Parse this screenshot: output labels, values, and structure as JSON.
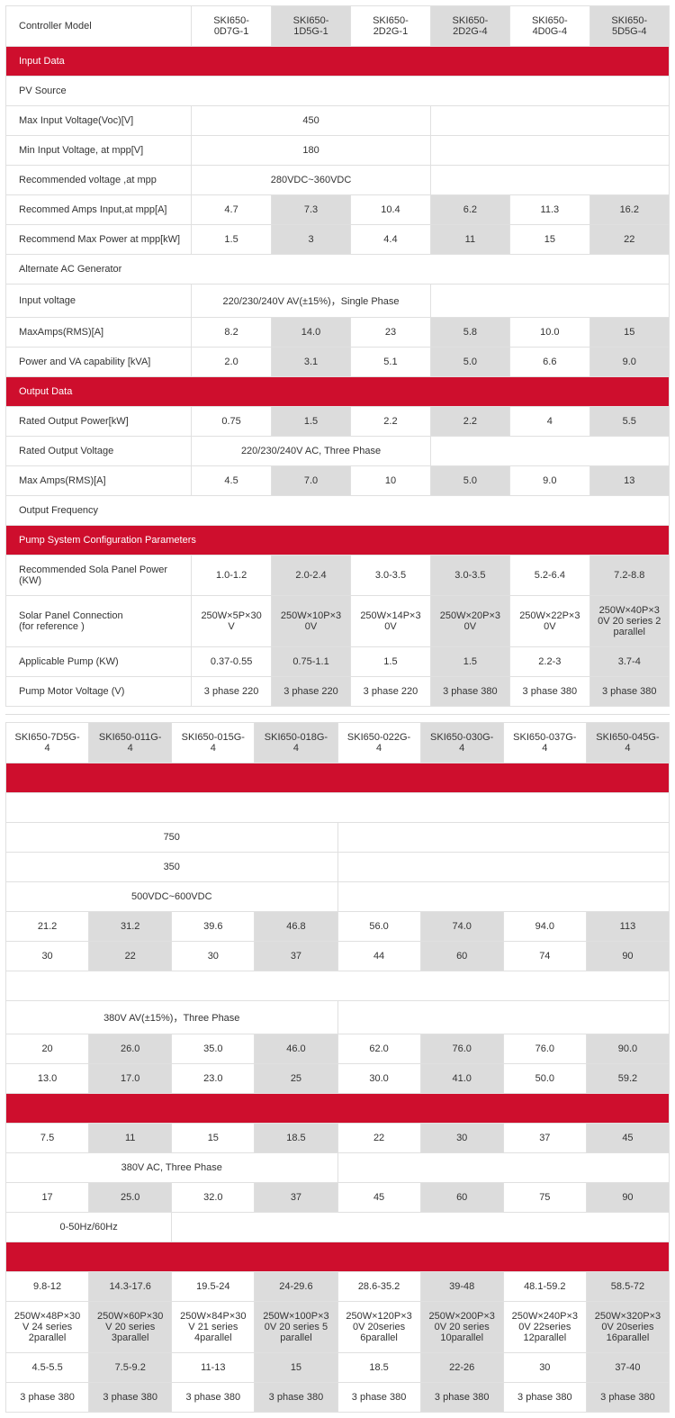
{
  "t1": {
    "labels": {
      "controller_model": "Controller Model",
      "input_data": "Input Data",
      "pv_source": "PV Source",
      "max_input_voltage": "Max Input Voltage(Voc)[V]",
      "min_input_voltage": "Min Input Voltage, at mpp[V]",
      "rec_voltage": "Recommended voltage ,at mpp",
      "rec_amps": "Recommed Amps Input,at mpp[A]",
      "rec_max_power": "Recommend Max Power at mpp[kW]",
      "alt_ac": "Alternate AC Generator",
      "input_voltage": "Input voltage",
      "max_amps_rms": "MaxAmps(RMS)[A]",
      "power_va": "Power and VA capability [kVA]",
      "output_data": "Output Data",
      "rated_power": "Rated Output Power[kW]",
      "rated_voltage": "Rated Output Voltage",
      "max_amps_out": "Max Amps(RMS)[A]",
      "output_freq": "Output Frequency",
      "pump_config": "Pump System Configuration Parameters",
      "rec_sola": "Recommended Sola Panel Power (KW)",
      "solar_conn": "Solar Panel Connection\n(for reference )",
      "app_pump": "Applicable Pump (KW)",
      "pump_motor": "Pump Motor Voltage (V)"
    },
    "models": [
      "SKI650-0D7G-1",
      "SKI650-1D5G-1",
      "SKI650-2D2G-1",
      "SKI650-2D2G-4",
      "SKI650-4D0G-4",
      "SKI650-5D5G-4"
    ],
    "max_input_v": "450",
    "min_input_v": "180",
    "rec_voltage_v": "280VDC~360VDC",
    "rec_amps": [
      "4.7",
      "7.3",
      "10.4",
      "6.2",
      "11.3",
      "16.2"
    ],
    "rec_max_power": [
      "1.5",
      "3",
      "4.4",
      "11",
      "15",
      "22"
    ],
    "input_voltage_v": "220/230/240V AV(±15%)，Single Phase",
    "max_amps_rms": [
      "8.2",
      "14.0",
      "23",
      "5.8",
      "10.0",
      "15"
    ],
    "power_va": [
      "2.0",
      "3.1",
      "5.1",
      "5.0",
      "6.6",
      "9.0"
    ],
    "rated_power": [
      "0.75",
      "1.5",
      "2.2",
      "2.2",
      "4",
      "5.5"
    ],
    "rated_voltage_v": "220/230/240V AC, Three Phase",
    "max_amps_out": [
      "4.5",
      "7.0",
      "10",
      "5.0",
      "9.0",
      "13"
    ],
    "rec_sola": [
      "1.0-1.2",
      "2.0-2.4",
      "3.0-3.5",
      "3.0-3.5",
      "5.2-6.4",
      "7.2-8.8"
    ],
    "solar_conn": [
      "250W×5P×30V",
      "250W×10P×30V",
      "250W×14P×30V",
      "250W×20P×30V",
      "250W×22P×30V",
      "250W×40P×30V 20 series 2 parallel"
    ],
    "app_pump": [
      "0.37-0.55",
      "0.75-1.1",
      "1.5",
      "1.5",
      "2.2-3",
      "3.7-4"
    ],
    "pump_motor": [
      "3 phase 220",
      "3 phase 220",
      "3 phase 220",
      "3 phase 380",
      "3 phase 380",
      "3 phase 380"
    ]
  },
  "t2": {
    "models": [
      "SKI650-7D5G-4",
      "SKI650-011G-4",
      "SKI650-015G-4",
      "SKI650-018G-4",
      "SKI650-022G-4",
      "SKI650-030G-4",
      "SKI650-037G-4",
      "SKI650-045G-4"
    ],
    "max_input_v": "750",
    "min_input_v": "350",
    "rec_voltage_v": "500VDC~600VDC",
    "rec_amps": [
      "21.2",
      "31.2",
      "39.6",
      "46.8",
      "56.0",
      "74.0",
      "94.0",
      "113"
    ],
    "rec_max_power": [
      "30",
      "22",
      "30",
      "37",
      "44",
      "60",
      "74",
      "90"
    ],
    "input_voltage_v": "380V AV(±15%)，Three Phase",
    "max_amps_rms": [
      "20",
      "26.0",
      "35.0",
      "46.0",
      "62.0",
      "76.0",
      "76.0",
      "90.0"
    ],
    "power_va": [
      "13.0",
      "17.0",
      "23.0",
      "25",
      "30.0",
      "41.0",
      "50.0",
      "59.2"
    ],
    "rated_power": [
      "7.5",
      "11",
      "15",
      "18.5",
      "22",
      "30",
      "37",
      "45"
    ],
    "rated_voltage_v": "380V AC, Three Phase",
    "max_amps_out": [
      "17",
      "25.0",
      "32.0",
      "37",
      "45",
      "60",
      "75",
      "90"
    ],
    "output_freq_v": "0-50Hz/60Hz",
    "rec_sola": [
      "9.8-12",
      "14.3-17.6",
      "19.5-24",
      "24-29.6",
      "28.6-35.2",
      "39-48",
      "48.1-59.2",
      "58.5-72"
    ],
    "solar_conn": [
      "250W×48P×30V 24 series 2parallel",
      "250W×60P×30V 20 series 3parallel",
      "250W×84P×30V 21 series 4parallel",
      "250W×100P×30V 20 series 5 parallel",
      "250W×120P×30V 20series 6parallel",
      "250W×200P×30V 20 series 10parallel",
      "250W×240P×30V 22series 12parallel",
      "250W×320P×30V 20series 16parallel"
    ],
    "app_pump": [
      "4.5-5.5",
      "7.5-9.2",
      "11-13",
      "15",
      "18.5",
      "22-26",
      "30",
      "37-40"
    ],
    "pump_motor": [
      "3 phase 380",
      "3 phase 380",
      "3 phase 380",
      "3 phase 380",
      "3 phase 380",
      "3 phase 380",
      "3 phase 380",
      "3 phase 380"
    ]
  }
}
